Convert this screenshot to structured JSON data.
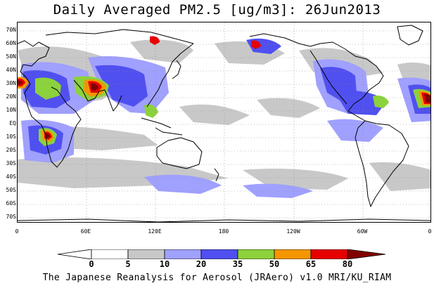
{
  "title": "Daily Averaged PM2.5 [ug/m3]: 26Jun2013",
  "lat_labels": [
    "70N",
    "60N",
    "50N",
    "40N",
    "30N",
    "20N",
    "10N",
    "EQ",
    "10S",
    "20S",
    "30S",
    "40S",
    "50S",
    "60S",
    "70S"
  ],
  "lon_labels": [
    "0",
    "60E",
    "120E",
    "180",
    "120W",
    "60W",
    "0"
  ],
  "colorbar": {
    "thresholds": [
      "0",
      "5",
      "10",
      "20",
      "35",
      "50",
      "65",
      "80"
    ],
    "colors": [
      "#ffffff",
      "#c8c8c8",
      "#a0a0ff",
      "#5050f0",
      "#8cd23c",
      "#f59600",
      "#e60000",
      "#820000"
    ]
  },
  "footer": "The Japanese Reanalysis for Aerosol (JRAero) v1.0 MRI/KU_RIAM"
}
